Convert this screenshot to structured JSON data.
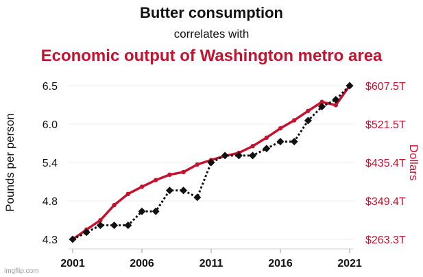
{
  "title": {
    "line1": "Butter consumption",
    "line2": "correlates with",
    "line3": "Economic output of Washington metro area"
  },
  "watermark": "imgflip.com",
  "colors": {
    "butter": "#111111",
    "output": "#c4122f"
  },
  "chart_data": {
    "type": "line",
    "x": [
      2001,
      2002,
      2003,
      2004,
      2005,
      2006,
      2007,
      2008,
      2009,
      2010,
      2011,
      2012,
      2013,
      2014,
      2015,
      2016,
      2017,
      2018,
      2019,
      2020,
      2021
    ],
    "x_ticks": [
      "2001",
      "2006",
      "2011",
      "2016",
      "2021"
    ],
    "left_axis": {
      "label": "Pounds per person",
      "ticks": [
        "6.5",
        "6.0",
        "5.4",
        "4.8",
        "4.3"
      ],
      "range": [
        4.3,
        6.5
      ]
    },
    "right_axis": {
      "label": "Dollars",
      "ticks": [
        "$607.5T",
        "$521.5T",
        "$435.4T",
        "$349.4T",
        "$263.3T"
      ],
      "range": [
        263.3,
        607.5
      ]
    },
    "series": [
      {
        "axis": "left",
        "style": "dotted with diamond markers",
        "values": [
          4.3,
          4.4,
          4.5,
          4.5,
          4.5,
          4.7,
          4.7,
          5.0,
          5.0,
          4.9,
          5.4,
          5.5,
          5.5,
          5.5,
          5.6,
          5.7,
          5.7,
          6.0,
          6.2,
          6.3,
          6.5
        ]
      },
      {
        "axis": "right",
        "style": "solid with circle markers",
        "values": [
          263.3,
          285,
          306,
          340,
          365,
          381,
          396,
          408,
          414,
          431,
          441,
          450,
          457,
          472,
          491,
          512,
          530,
          551,
          571,
          564,
          607.5
        ]
      }
    ],
    "grid": "horizontal"
  }
}
